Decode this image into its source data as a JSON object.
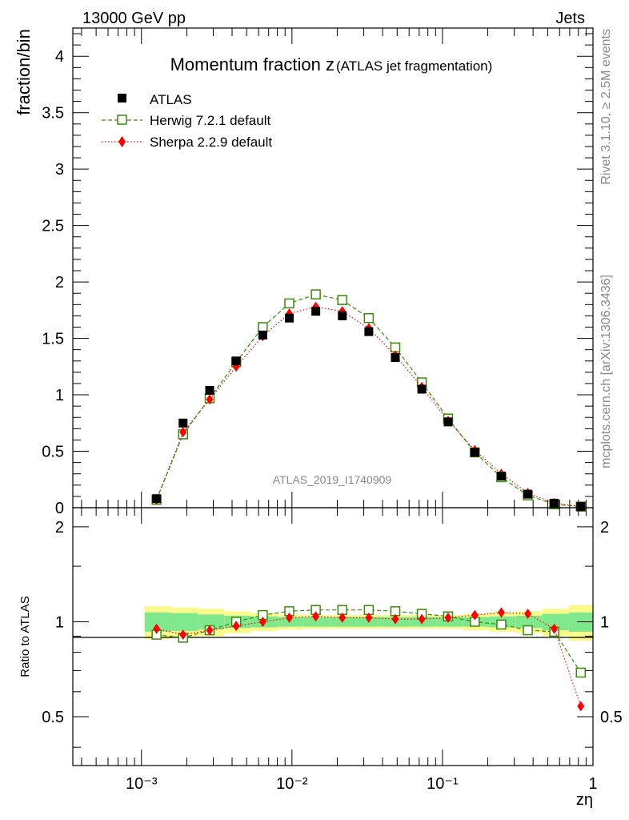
{
  "header": {
    "left": "13000 GeV pp",
    "right": "Jets"
  },
  "side": {
    "rivet": "Rivet 3.1.10, ≥ 2.5M events",
    "mcplots": "mcplots.cern.ch [arXiv:1306.3436]"
  },
  "chart_data": [
    {
      "type": "scatter",
      "title": "Momentum fraction z",
      "subtitle": "(ATLAS jet fragmentation)",
      "ylabel": "fraction/bin",
      "watermark": "ATLAS_2019_I1740909",
      "xscale": "log",
      "xlim": [
        0.00035,
        1
      ],
      "ylim": [
        0,
        4.25
      ],
      "yticks": [
        "0",
        "0.5",
        "1",
        "1.5",
        "2",
        "2.5",
        "3",
        "3.5",
        "4"
      ],
      "legend_position": "top-left",
      "x": [
        0.00126,
        0.00189,
        0.00284,
        0.00426,
        0.0064,
        0.0096,
        0.0144,
        0.0216,
        0.0324,
        0.0486,
        0.0729,
        0.109,
        0.164,
        0.246,
        0.369,
        0.553,
        0.83
      ],
      "series": [
        {
          "name": "ATLAS",
          "color": "#000000",
          "marker": "filled-square",
          "values": [
            0.08,
            0.75,
            1.04,
            1.3,
            1.53,
            1.68,
            1.74,
            1.7,
            1.56,
            1.33,
            1.05,
            0.76,
            0.49,
            0.28,
            0.12,
            0.04,
            0.01
          ]
        },
        {
          "name": "Herwig 7.2.1 default",
          "color": "#3a8a0a",
          "marker": "open-square",
          "line": "dashed",
          "values": [
            0.07,
            0.65,
            0.97,
            1.29,
            1.6,
            1.81,
            1.89,
            1.84,
            1.68,
            1.42,
            1.11,
            0.79,
            0.49,
            0.27,
            0.11,
            0.03,
            0.01
          ]
        },
        {
          "name": "Sherpa 2.2.9 default",
          "color": "#ff0000",
          "marker": "filled-diamond",
          "line": "dotted",
          "values": [
            0.07,
            0.67,
            0.96,
            1.25,
            1.52,
            1.72,
            1.78,
            1.74,
            1.59,
            1.35,
            1.07,
            0.77,
            0.51,
            0.3,
            0.13,
            0.04,
            0.01
          ]
        }
      ]
    },
    {
      "type": "scatter",
      "ylabel": "Ratio to ATLAS",
      "xlabel": "zη",
      "xscale": "log",
      "xlim": [
        0.00035,
        1
      ],
      "ylim": [
        0.35,
        2.3
      ],
      "yscale": "log",
      "yticks": [
        "0.5",
        "1",
        "2"
      ],
      "xticks": [
        "10⁻³",
        "10⁻²",
        "10⁻¹",
        "1"
      ],
      "x": [
        0.00126,
        0.00189,
        0.00284,
        0.00426,
        0.0064,
        0.0096,
        0.0144,
        0.0216,
        0.0324,
        0.0486,
        0.0729,
        0.109,
        0.164,
        0.246,
        0.369,
        0.553,
        0.83
      ],
      "band_edges": [
        0.00105,
        0.00158,
        0.00237,
        0.00355,
        0.00533,
        0.008,
        0.012,
        0.018,
        0.027,
        0.0405,
        0.0608,
        0.0911,
        0.137,
        0.205,
        0.308,
        0.461,
        0.692,
        1.0
      ],
      "band_inner": [
        0.07,
        0.065,
        0.055,
        0.045,
        0.04,
        0.035,
        0.035,
        0.035,
        0.035,
        0.035,
        0.035,
        0.035,
        0.035,
        0.04,
        0.045,
        0.06,
        0.07
      ],
      "band_outer": [
        0.12,
        0.11,
        0.1,
        0.08,
        0.065,
        0.055,
        0.05,
        0.05,
        0.05,
        0.05,
        0.05,
        0.05,
        0.06,
        0.07,
        0.08,
        0.1,
        0.13
      ],
      "band_colors": {
        "inner": "#7fe88c",
        "outer": "#fafa8c"
      },
      "series": [
        {
          "name": "Herwig 7.2.1 default",
          "color": "#3a8a0a",
          "values": [
            0.91,
            0.89,
            0.94,
            1.0,
            1.05,
            1.08,
            1.09,
            1.09,
            1.09,
            1.08,
            1.06,
            1.04,
            1.0,
            0.98,
            0.94,
            0.93,
            0.69
          ]
        },
        {
          "name": "Sherpa 2.2.9 default",
          "color": "#ff0000",
          "values": [
            0.95,
            0.91,
            0.94,
            0.97,
            1.0,
            1.03,
            1.04,
            1.03,
            1.03,
            1.02,
            1.02,
            1.03,
            1.05,
            1.07,
            1.06,
            0.95,
            0.54
          ]
        }
      ]
    }
  ]
}
